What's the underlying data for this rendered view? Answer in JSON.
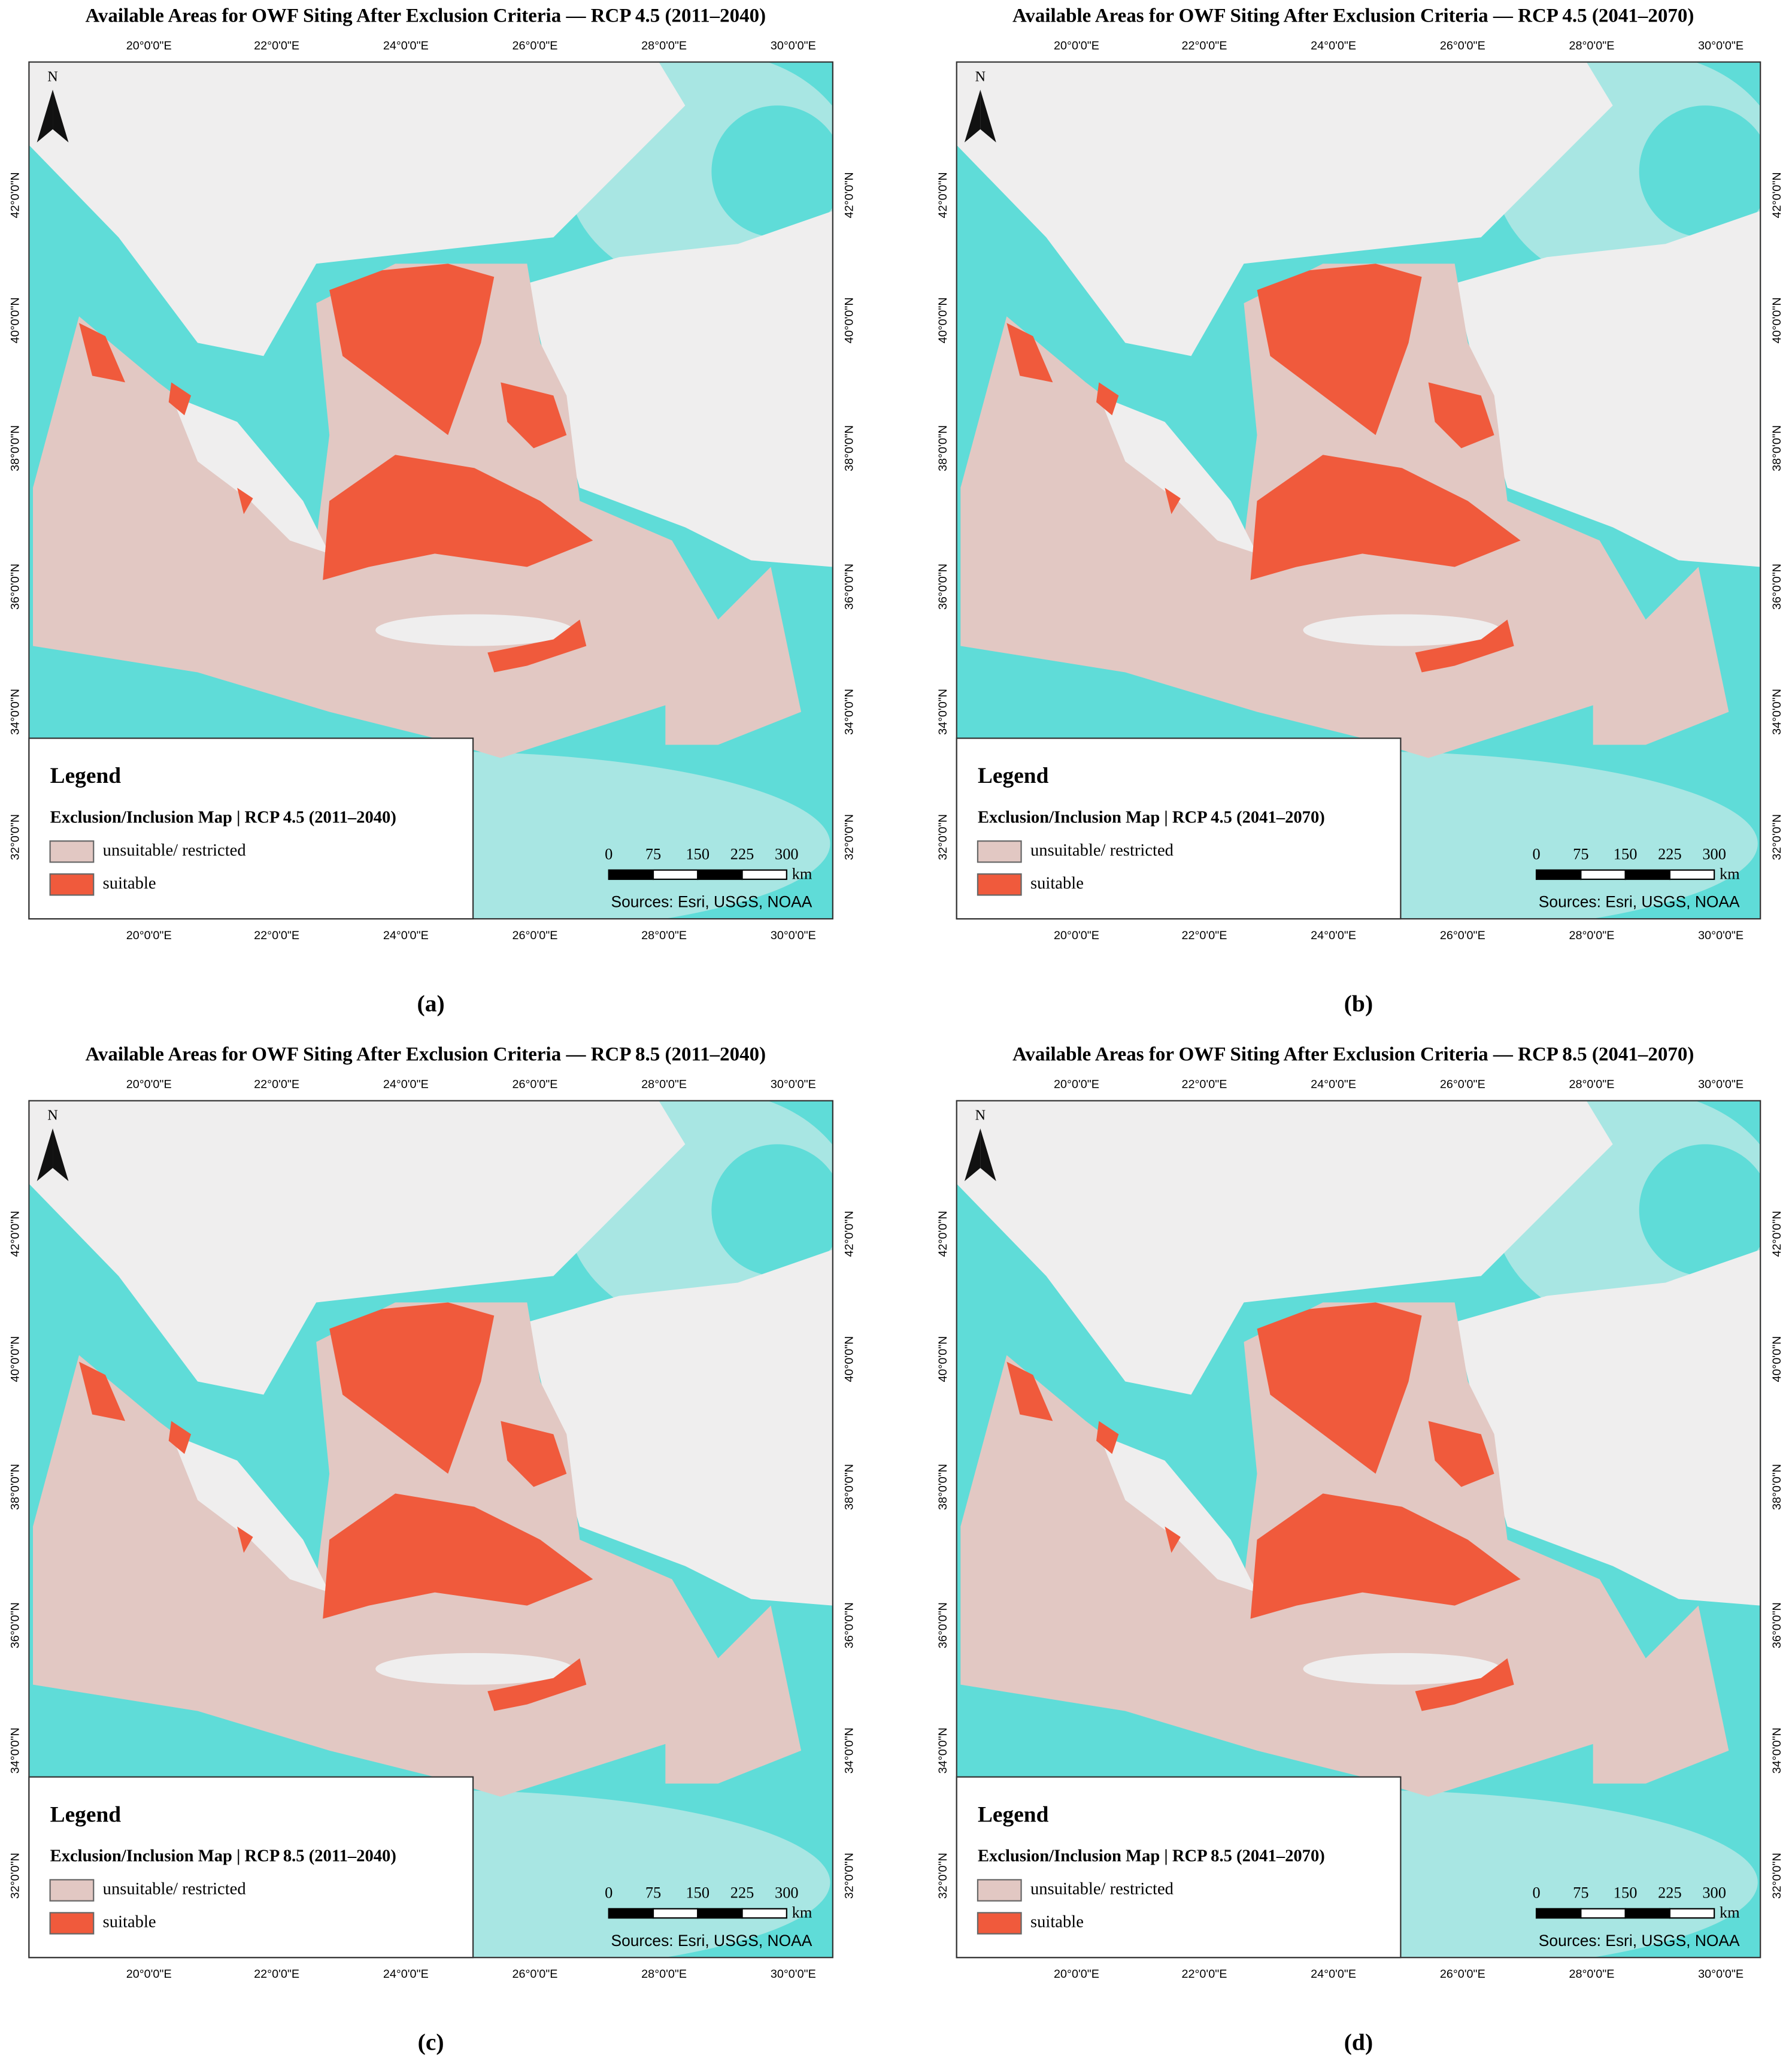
{
  "common": {
    "lon_labels": [
      "20°0'0\"E",
      "22°0'0\"E",
      "24°0'0\"E",
      "26°0'0\"E",
      "28°0'0\"E",
      "30°0'0\"E"
    ],
    "lat_labels": [
      "42°0'0\"N",
      "40°0'0\"N",
      "38°0'0\"N",
      "36°0'0\"N",
      "34°0'0\"N",
      "32°0'0\"N"
    ],
    "north": "N",
    "legend_heading": "Legend",
    "legend_items": [
      "unsuitable/ restricted",
      "suitable"
    ],
    "scale_labels": [
      0,
      75,
      150,
      225,
      300
    ],
    "scale_unit": "km",
    "sources": "Sources: Esri, USGS, NOAA"
  },
  "panels": [
    {
      "title": "Available Areas for OWF Siting After Exclusion Criteria — RCP 4.5 (2011–2040)",
      "legend_title": "Exclusion/Inclusion Map | RCP 4.5 (2011–2040)",
      "caption": "(a)"
    },
    {
      "title": "Available Areas for OWF Siting After Exclusion Criteria — RCP 4.5 (2041–2070)",
      "legend_title": "Exclusion/Inclusion Map | RCP 4.5 (2041–2070)",
      "caption": "(b)"
    },
    {
      "title": "Available Areas for OWF Siting After Exclusion Criteria — RCP 8.5 (2011–2040)",
      "legend_title": "Exclusion/Inclusion Map | RCP 8.5 (2011–2040)",
      "caption": "(c)"
    },
    {
      "title": "Available Areas for OWF Siting After Exclusion Criteria — RCP 8.5 (2041–2070)",
      "legend_title": "Exclusion/Inclusion Map | RCP 8.5 (2041–2070)",
      "caption": "(d)"
    }
  ]
}
